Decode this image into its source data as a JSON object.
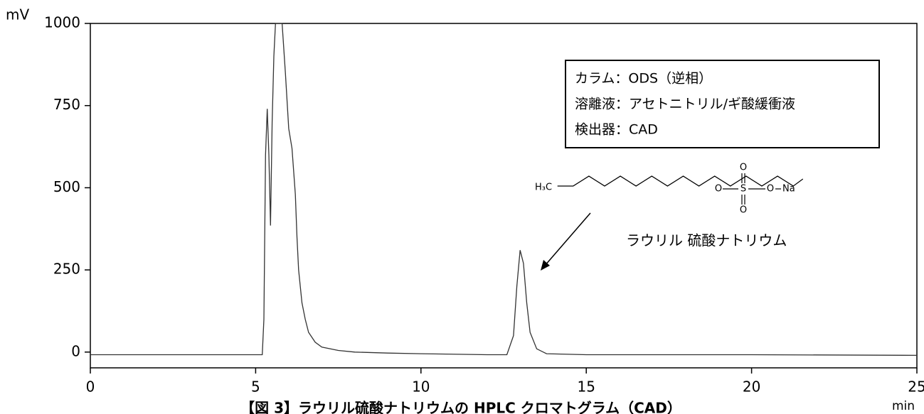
{
  "chart_data": {
    "type": "line",
    "y_unit": "mV",
    "x_unit": "min",
    "caption": "【図 3】ラウリル硫酸ナトリウムの HPLC クロマトグラム（CAD）",
    "info_box": [
      "カラム：ODS（逆相）",
      "溶離液：アセトニトリル/ギ酸緩衝液",
      "検出器：CAD"
    ],
    "peak_label": "ラウリル 硫酸ナトリウム",
    "structure_atoms": [
      "H₃C",
      "O",
      "S",
      "O",
      "O",
      "O",
      "Na"
    ],
    "x": [
      0,
      2,
      4,
      5.2,
      5.25,
      5.3,
      5.35,
      5.4,
      5.45,
      5.5,
      5.55,
      5.6,
      5.8,
      5.9,
      6.0,
      6.1,
      6.2,
      6.25,
      6.3,
      6.4,
      6.5,
      6.6,
      6.8,
      7.0,
      7.5,
      8,
      9,
      10,
      12,
      12.6,
      12.8,
      12.9,
      13.0,
      13.1,
      13.2,
      13.3,
      13.5,
      13.8,
      15,
      20,
      25
    ],
    "series": [
      {
        "color": "#333333",
        "values": [
          -8,
          -8,
          -8,
          -8,
          100,
          600,
          740,
          600,
          385,
          700,
          900,
          1000,
          1000,
          850,
          680,
          620,
          480,
          350,
          250,
          150,
          100,
          60,
          30,
          15,
          5,
          0,
          -3,
          -5,
          -8,
          -8,
          50,
          200,
          310,
          270,
          150,
          60,
          10,
          -5,
          -8,
          -8,
          -10
        ]
      }
    ],
    "xlim": [
      0,
      25
    ],
    "ylim": [
      -48,
      1000
    ],
    "xticks": [
      0,
      5,
      10,
      15,
      20,
      25
    ],
    "yticks": [
      0,
      250,
      500,
      750,
      1000
    ]
  }
}
